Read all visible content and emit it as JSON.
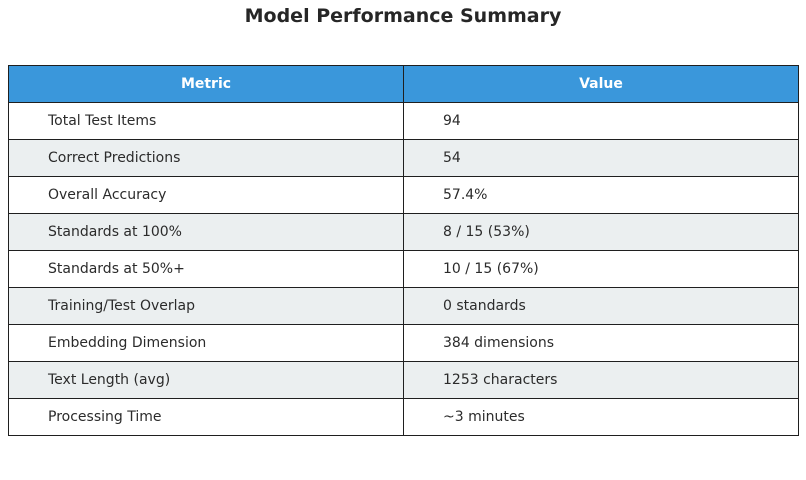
{
  "title": "Model Performance Summary",
  "chart_data": {
    "type": "table",
    "title": "Model Performance Summary",
    "columns": [
      "Metric",
      "Value"
    ],
    "rows": [
      [
        "Total Test Items",
        "94"
      ],
      [
        "Correct Predictions",
        "54"
      ],
      [
        "Overall Accuracy",
        "57.4%"
      ],
      [
        "Standards at 100%",
        "8 / 15 (53%)"
      ],
      [
        "Standards at 50%+",
        "10 / 15 (67%)"
      ],
      [
        "Training/Test Overlap",
        "0 standards"
      ],
      [
        "Embedding Dimension",
        "384 dimensions"
      ],
      [
        "Text Length (avg)",
        "1253 characters"
      ],
      [
        "Processing Time",
        "~3 minutes"
      ]
    ]
  },
  "colors": {
    "header_bg": "#3a97db",
    "header_text": "#ffffff",
    "alt_row_bg": "#ebeff0",
    "row_bg": "#ffffff",
    "border": "#1f1f1f"
  }
}
